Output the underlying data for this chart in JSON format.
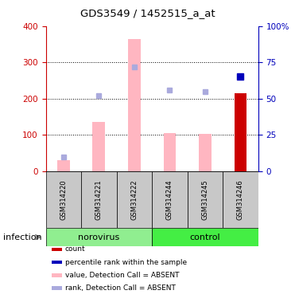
{
  "title": "GDS3549 / 1452515_a_at",
  "samples": [
    "GSM314220",
    "GSM314221",
    "GSM314222",
    "GSM314244",
    "GSM314245",
    "GSM314246"
  ],
  "bar_values_absent": [
    30,
    135,
    365,
    106,
    103,
    0
  ],
  "count_bar_value": 215,
  "count_bar_color": "#CC0000",
  "count_bar_index": 5,
  "rank_absent_dots_pct": [
    10,
    52,
    72,
    56,
    55,
    0
  ],
  "rank_absent_dot_color": "#AAAADD",
  "percentile_dot_pct": [
    0,
    0,
    0,
    0,
    0,
    65
  ],
  "percentile_dot_color": "#0000BB",
  "ylim_left": [
    0,
    400
  ],
  "ylim_right": [
    0,
    100
  ],
  "yticks_left": [
    0,
    100,
    200,
    300,
    400
  ],
  "yticks_right": [
    0,
    25,
    50,
    75,
    100
  ],
  "left_axis_color": "#CC0000",
  "right_axis_color": "#0000BB",
  "norovirus_color": "#90EE90",
  "control_color": "#44EE44",
  "sample_bg_color": "#C8C8C8",
  "legend_items": [
    {
      "color": "#CC0000",
      "label": "count"
    },
    {
      "color": "#0000BB",
      "label": "percentile rank within the sample"
    },
    {
      "color": "#FFB6C1",
      "label": "value, Detection Call = ABSENT"
    },
    {
      "color": "#AAAADD",
      "label": "rank, Detection Call = ABSENT"
    }
  ]
}
